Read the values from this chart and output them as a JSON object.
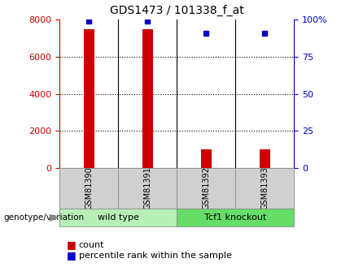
{
  "title": "GDS1473 / 101338_f_at",
  "samples": [
    "GSM81390",
    "GSM81391",
    "GSM81392",
    "GSM81393"
  ],
  "counts": [
    7500,
    7500,
    1000,
    1000
  ],
  "percentiles": [
    99,
    99,
    91,
    91
  ],
  "ylim_left": [
    0,
    8000
  ],
  "ylim_right": [
    0,
    100
  ],
  "yticks_left": [
    0,
    2000,
    4000,
    6000,
    8000
  ],
  "ytick_labels_right": [
    "0",
    "25",
    "50",
    "75",
    "100%"
  ],
  "bar_color": "#cc0000",
  "marker_color": "#0000cc",
  "groups": [
    {
      "label": "wild type",
      "indices": [
        0,
        1
      ],
      "color": "#b8f0b8"
    },
    {
      "label": "Tcf1 knockout",
      "indices": [
        2,
        3
      ],
      "color": "#66dd66"
    }
  ],
  "legend_count_label": "count",
  "legend_percentile_label": "percentile rank within the sample",
  "genotype_label": "genotype/variation",
  "title_fontsize": 10,
  "tick_fontsize": 8,
  "sample_fontsize": 7,
  "group_fontsize": 8
}
